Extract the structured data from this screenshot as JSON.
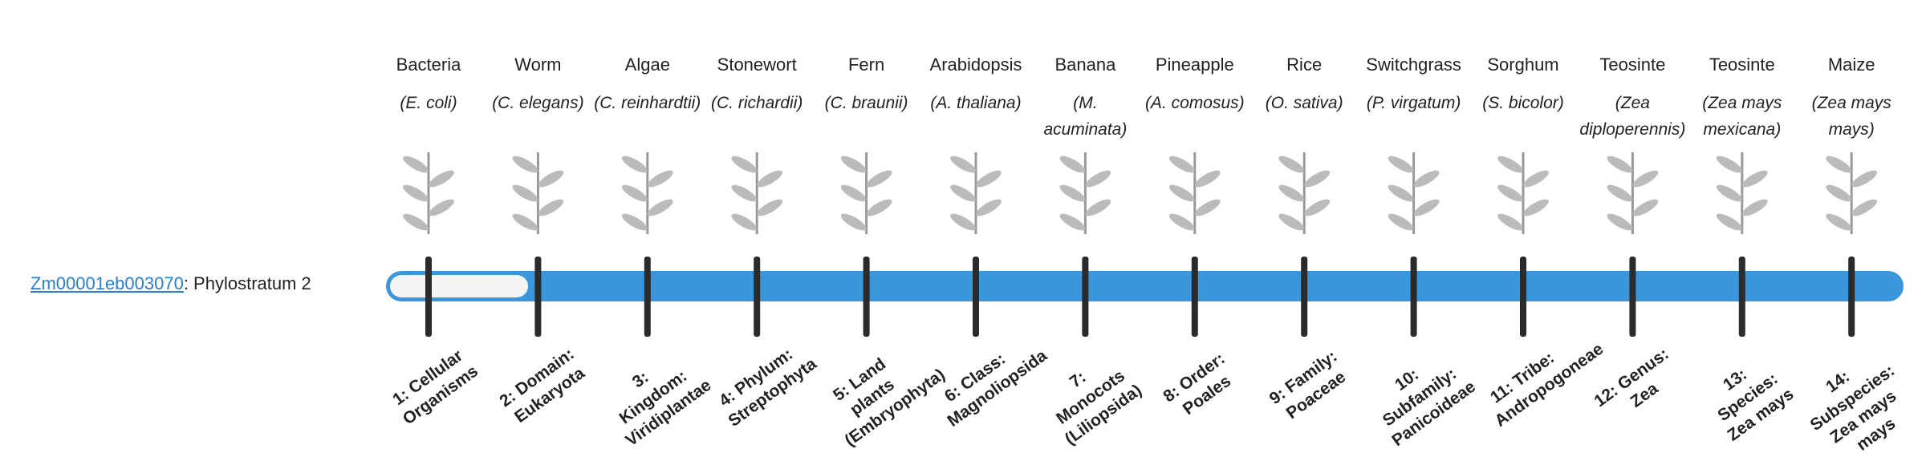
{
  "gene_id": "Zm00001eb003070",
  "phylostratum": ": Phylostratum 2",
  "strata": [
    {
      "name": "Bacteria",
      "species": "(E. coli)",
      "rank": "1: Cellular Organisms"
    },
    {
      "name": "Worm",
      "species": "(C. elegans)",
      "rank": "2: Domain: Eukaryota"
    },
    {
      "name": "Algae",
      "species": "(C. reinhardtii)",
      "rank": "3: Kingdom: Viridiplantae"
    },
    {
      "name": "Stonewort",
      "species": "(C. richardii)",
      "rank": "4: Phylum: Streptophyta"
    },
    {
      "name": "Fern",
      "species": "(C. braunii)",
      "rank": "5: Land plants (Embryophyta)"
    },
    {
      "name": "Arabidopsis",
      "species": "(A. thaliana)",
      "rank": "6: Class: Magnoliopsida"
    },
    {
      "name": "Banana",
      "species": "(M. acuminata)",
      "rank": "7: Monocots (Liliopsida)"
    },
    {
      "name": "Pineapple",
      "species": "(A. comosus)",
      "rank": "8: Order: Poales"
    },
    {
      "name": "Rice",
      "species": "(O. sativa)",
      "rank": "9: Family: Poaceae"
    },
    {
      "name": "Switchgrass",
      "species": "(P. virgatum)",
      "rank": "10: Subfamily: Panicoideae"
    },
    {
      "name": "Sorghum",
      "species": "(S. bicolor)",
      "rank": "11: Tribe: Andropogoneae"
    },
    {
      "name": "Teosinte",
      "species": "(Zea diploperennis)",
      "rank": "12: Genus: Zea"
    },
    {
      "name": "Teosinte",
      "species": "(Zea mays mexicana)",
      "rank": "13: Species: Zea mays"
    },
    {
      "name": "Maize",
      "species": "(Zea mays mays)",
      "rank": "14: Subspecies: Zea mays mays"
    }
  ]
}
